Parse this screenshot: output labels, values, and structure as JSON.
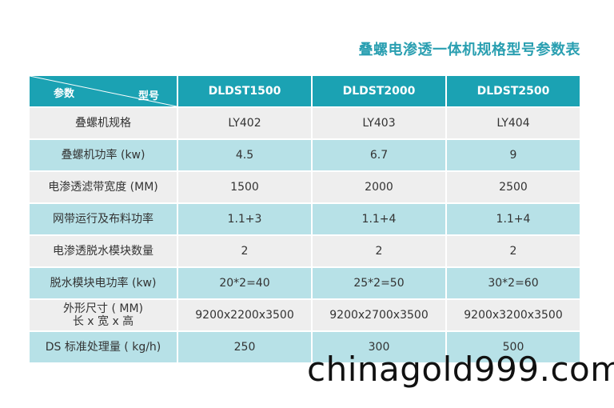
{
  "title": "叠螺电渗透一体机规格型号参数表",
  "header": {
    "param_label": "参数",
    "model_label": "型号",
    "models": [
      "DLDST1500",
      "DLDST2000",
      "DLDST2500"
    ]
  },
  "rows": [
    {
      "label": "叠螺机规格",
      "values": [
        "LY402",
        "LY403",
        "LY404"
      ]
    },
    {
      "label": "叠螺机功率 (kw)",
      "values": [
        "4.5",
        "6.7",
        "9"
      ]
    },
    {
      "label": "电渗透滤带宽度 (MM)",
      "values": [
        "1500",
        "2000",
        "2500"
      ]
    },
    {
      "label": "网带运行及布料功率",
      "values": [
        "1.1+3",
        "1.1+4",
        "1.1+4"
      ]
    },
    {
      "label": "电渗透脱水模块数量",
      "values": [
        "2",
        "2",
        "2"
      ]
    },
    {
      "label": "脱水模块电功率 (kw)",
      "values": [
        "20*2=40",
        "25*2=50",
        "30*2=60"
      ]
    },
    {
      "label": "外形尺寸 ( MM)",
      "sublabel": "长 x 宽 x 高",
      "values": [
        "9200x2200x3500",
        "9200x2700x3500",
        "9200x3200x3500"
      ]
    },
    {
      "label": "DS 标准处理量 ( kg/h)",
      "values": [
        "250",
        "300",
        "500"
      ]
    }
  ],
  "watermark": "chinagold999.com",
  "colors": {
    "accent": "#1ba2b3",
    "title": "#2a9fb1",
    "row_light": "#eeeeee",
    "row_tint": "#b7e1e7"
  }
}
